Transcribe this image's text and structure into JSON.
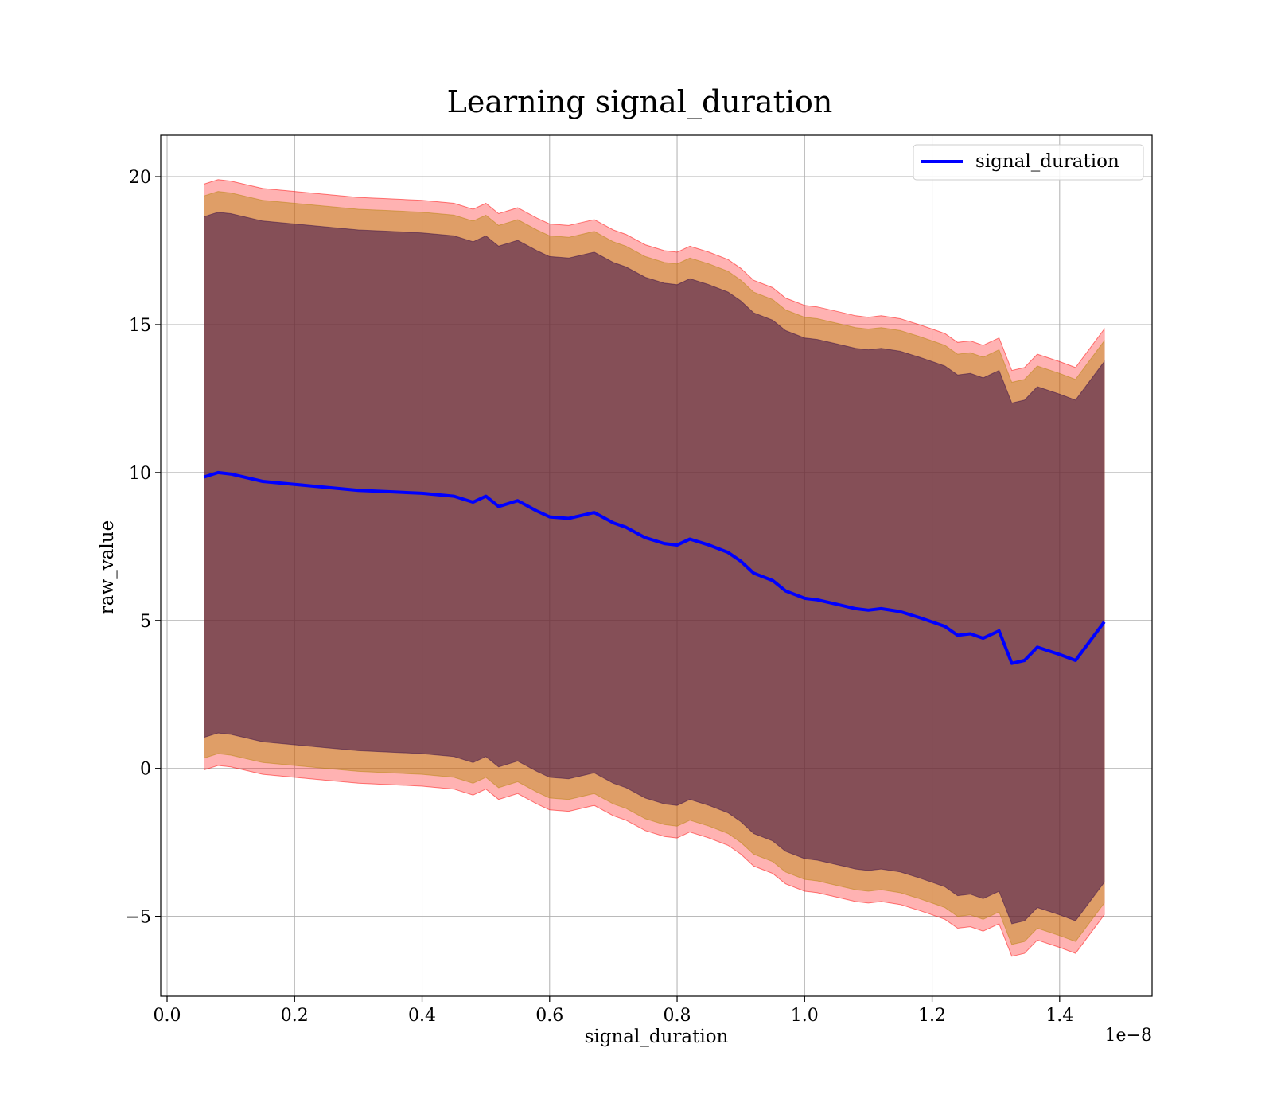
{
  "chart_data": {
    "type": "area",
    "title": "Learning signal_duration",
    "xlabel": "signal_duration",
    "ylabel": "raw_value",
    "x_offset_label": "1e−8",
    "xlim": [
      -0.01,
      1.545
    ],
    "ylim": [
      -7.7,
      21.4
    ],
    "xticks": [
      0.0,
      0.2,
      0.4,
      0.6,
      0.8,
      1.0,
      1.2,
      1.4
    ],
    "xtick_labels": [
      "0.0",
      "0.2",
      "0.4",
      "0.6",
      "0.8",
      "1.0",
      "1.2",
      "1.4"
    ],
    "yticks": [
      -5,
      0,
      5,
      10,
      15,
      20
    ],
    "ytick_labels": [
      "−5",
      "0",
      "5",
      "10",
      "15",
      "20"
    ],
    "grid": true,
    "legend": {
      "position": "top-right",
      "entries": [
        "signal_duration"
      ]
    },
    "colors": {
      "line": "#0000ff",
      "band_outer": "#ff0000",
      "band_middle": "#b8860b",
      "band_inner": "#3a0f4a",
      "grid": "#b0b0b0"
    },
    "x": [
      0.058,
      0.08,
      0.1,
      0.15,
      0.2,
      0.25,
      0.3,
      0.35,
      0.4,
      0.45,
      0.48,
      0.5,
      0.52,
      0.55,
      0.58,
      0.6,
      0.63,
      0.65,
      0.67,
      0.7,
      0.72,
      0.75,
      0.78,
      0.8,
      0.82,
      0.85,
      0.88,
      0.9,
      0.92,
      0.95,
      0.97,
      1.0,
      1.02,
      1.05,
      1.08,
      1.1,
      1.12,
      1.15,
      1.18,
      1.2,
      1.22,
      1.24,
      1.26,
      1.28,
      1.305,
      1.325,
      1.345,
      1.365,
      1.4,
      1.425,
      1.47
    ],
    "series": [
      {
        "name": "signal_duration",
        "values": [
          9.85,
          10.0,
          9.95,
          9.7,
          9.6,
          9.5,
          9.4,
          9.35,
          9.3,
          9.2,
          9.0,
          9.2,
          8.85,
          9.05,
          8.7,
          8.5,
          8.45,
          8.55,
          8.65,
          8.3,
          8.15,
          7.8,
          7.6,
          7.55,
          7.75,
          7.55,
          7.3,
          7.0,
          6.6,
          6.35,
          6.0,
          5.75,
          5.7,
          5.55,
          5.4,
          5.35,
          5.4,
          5.3,
          5.1,
          4.95,
          4.8,
          4.5,
          4.55,
          4.4,
          4.65,
          3.55,
          3.65,
          4.1,
          3.85,
          3.65,
          4.95
        ]
      }
    ],
    "bands": [
      {
        "level": "outer",
        "half_width": 9.9
      },
      {
        "level": "middle",
        "half_width": 9.5
      },
      {
        "level": "inner",
        "half_width": 8.8
      }
    ]
  }
}
